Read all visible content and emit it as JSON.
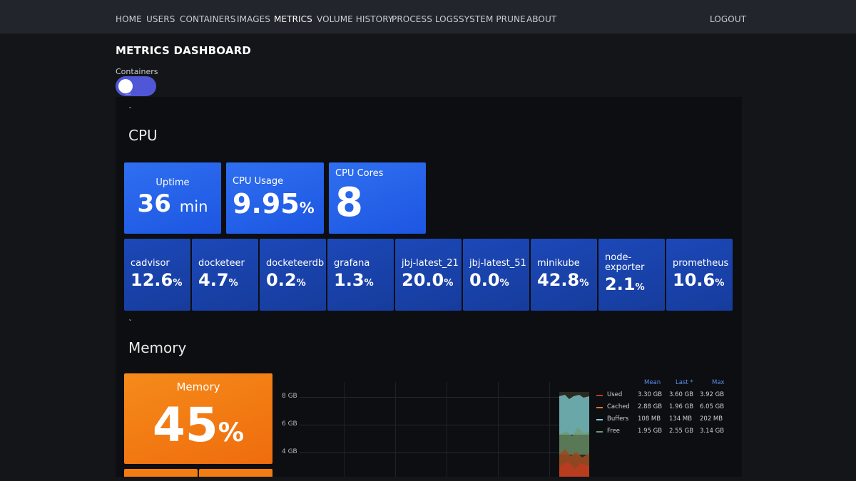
{
  "nav": {
    "items": [
      {
        "label": "HOME"
      },
      {
        "label": "USERS"
      },
      {
        "label": "CONTAINERS"
      },
      {
        "label": "IMAGES"
      },
      {
        "label": "METRICS"
      },
      {
        "label": "VOLUME HISTORY"
      },
      {
        "label": "PROCESS LOGS"
      },
      {
        "label": "SYSTEM PRUNE"
      },
      {
        "label": "ABOUT"
      }
    ],
    "logout": "LOGOUT"
  },
  "page": {
    "title": "METRICS DASHBOARD",
    "toggle_label": "Containers"
  },
  "cpu": {
    "section_title": "CPU",
    "collapse": "ˇ",
    "uptime": {
      "label": "Uptime",
      "value": "36",
      "unit": "min"
    },
    "usage": {
      "label": "CPU Usage",
      "value": "9.95",
      "unit": "%"
    },
    "cores": {
      "label": "CPU Cores",
      "value": "8"
    },
    "containers": [
      {
        "name": "cadvisor",
        "value": "12.6",
        "unit": "%"
      },
      {
        "name": "docketeer",
        "value": "4.7",
        "unit": "%"
      },
      {
        "name": "docketeerdb",
        "value": "0.2",
        "unit": "%"
      },
      {
        "name": "grafana",
        "value": "1.3",
        "unit": "%"
      },
      {
        "name": "jbj-latest_21",
        "value": "20.0",
        "unit": "%"
      },
      {
        "name": "jbj-latest_51",
        "value": "0.0",
        "unit": "%"
      },
      {
        "name": "minikube",
        "value": "42.8",
        "unit": "%"
      },
      {
        "name": "node-exporter",
        "value": "2.1",
        "unit": "%"
      },
      {
        "name": "prometheus",
        "value": "10.6",
        "unit": "%"
      }
    ]
  },
  "memory": {
    "section_title": "Memory",
    "collapse": "ˇ",
    "gauge": {
      "label": "Memory",
      "value": "45",
      "unit": "%"
    },
    "y_ticks": [
      "8 GB",
      "6 GB",
      "4 GB"
    ],
    "legend": {
      "headers": [
        "Mean",
        "Last *",
        "Max"
      ],
      "rows": [
        {
          "name": "Used",
          "mean": "3.30 GB",
          "last": "3.60 GB",
          "max": "3.92 GB",
          "color": "#b83c1e"
        },
        {
          "name": "Cached",
          "mean": "2.88 GB",
          "last": "1.96 GB",
          "max": "6.05 GB",
          "color": "#e0752d"
        },
        {
          "name": "Buffers",
          "mean": "108 MB",
          "last": "134 MB",
          "max": "202 MB",
          "color": "#7fd1d8"
        },
        {
          "name": "Free",
          "mean": "1.95 GB",
          "last": "2.55 GB",
          "max": "3.14 GB",
          "color": "#6e9a6e"
        }
      ]
    }
  },
  "colors": {
    "accent": "#4f57d6",
    "stat_blue": "#2461ea",
    "stat_dark": "#1a44ad",
    "memory_orange": "#f27a14"
  }
}
